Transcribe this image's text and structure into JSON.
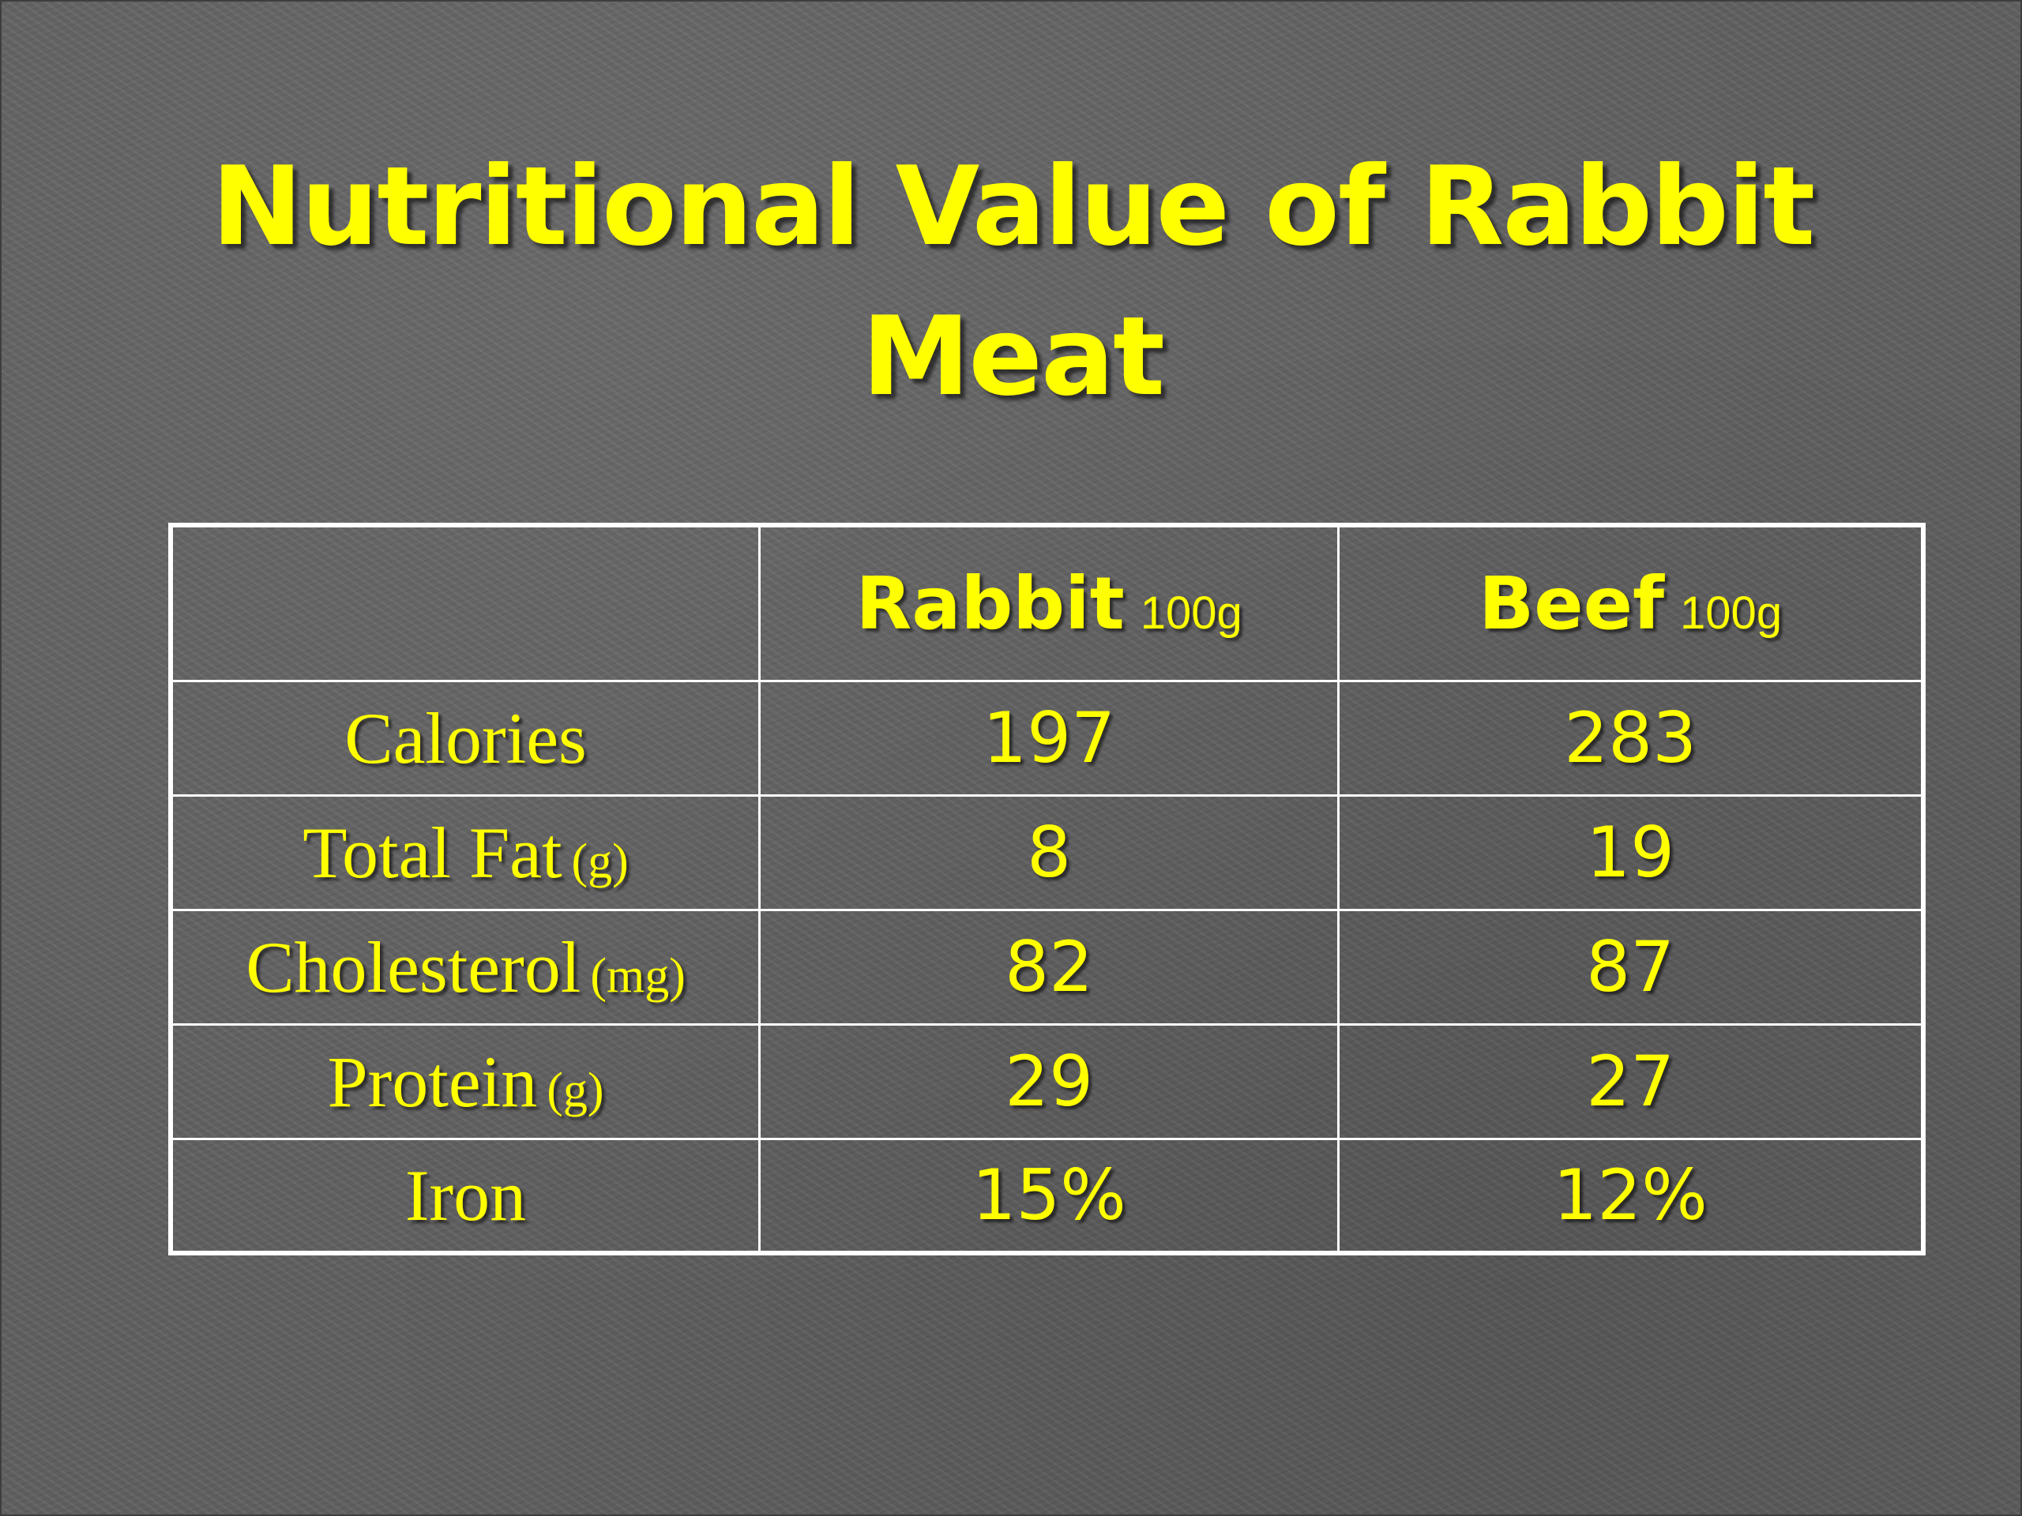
{
  "slide": {
    "title_line1": "Nutritional Value of Rabbit",
    "title_line2": "Meat"
  },
  "table": {
    "headers": [
      {
        "name": "",
        "unit": ""
      },
      {
        "name": "Rabbit",
        "unit": "100g"
      },
      {
        "name": "Beef",
        "unit": "100g"
      }
    ],
    "rows": [
      {
        "label": "Calories",
        "unit": "",
        "rabbit": "197",
        "beef": "283"
      },
      {
        "label": "Total Fat",
        "unit": "(g)",
        "rabbit": "8",
        "beef": "19"
      },
      {
        "label": "Cholesterol",
        "unit": "(mg)",
        "rabbit": "82",
        "beef": "87"
      },
      {
        "label": "Protein",
        "unit": "(g)",
        "rabbit": "29",
        "beef": "27"
      },
      {
        "label": "Iron",
        "unit": "",
        "rabbit": "15%",
        "beef": "12%"
      }
    ]
  },
  "colors": {
    "background": "#5f5f5f",
    "text": "#ffff00",
    "grid": "#ffffff"
  }
}
